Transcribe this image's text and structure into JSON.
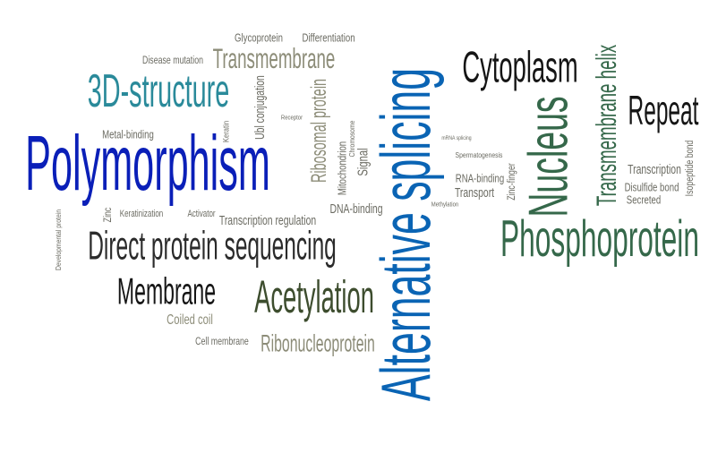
{
  "words": {
    "polymorphism": "Polymorphism",
    "structure3d": "3D-structure",
    "alternative_splicing": "Alternative splicing",
    "nucleus": "Nucleus",
    "phosphoprotein": "Phosphoprotein",
    "cytoplasm": "Cytoplasm",
    "repeat": "Repeat",
    "transmembrane_helix": "Transmembrane helix",
    "direct_protein_sequencing": "Direct protein sequencing",
    "acetylation": "Acetylation",
    "membrane": "Membrane",
    "transmembrane": "Transmembrane",
    "ribonucleoprotein": "Ribonucleoprotein",
    "ribosomal_protein": "Ribosomal protein",
    "glycoprotein": "Glycoprotein",
    "differentiation": "Differentiation",
    "disease_mutation": "Disease mutation",
    "metal_binding": "Metal-binding",
    "ubl_conjugation": "Ubl conjugation",
    "signal": "Signal",
    "mitochondrion": "Mitochondrion",
    "rna_binding": "RNA-binding",
    "transport": "Transport",
    "dna_binding": "DNA-binding",
    "transcription_regulation": "Transcription regulation",
    "activator": "Activator",
    "keratinization": "Keratinization",
    "zinc": "Zinc",
    "coiled_coil": "Coiled coil",
    "cell_membrane": "Cell membrane",
    "transcription": "Transcription",
    "disulfide_bond": "Disulfide bond",
    "secreted": "Secreted",
    "isopeptide_bond": "Isopeptide bond",
    "zinc_finger": "Zinc-finger",
    "spermatogenesis": "Spermatogenesis",
    "mrna_splicing": "mRNA splicing",
    "methylation": "Methylation",
    "receptor": "Receptor",
    "keratin": "Keratin",
    "developmental_protein": "Developmental protein",
    "chromosome": "Chromosome"
  },
  "colors": {
    "blue": "#0a64b4",
    "royal_blue": "#0a1fb8",
    "teal": "#2a8a9a",
    "green": "#35684a",
    "dark": "#2b2b2b",
    "olive": "#3d4d2e",
    "gray": "#8c8c78"
  }
}
